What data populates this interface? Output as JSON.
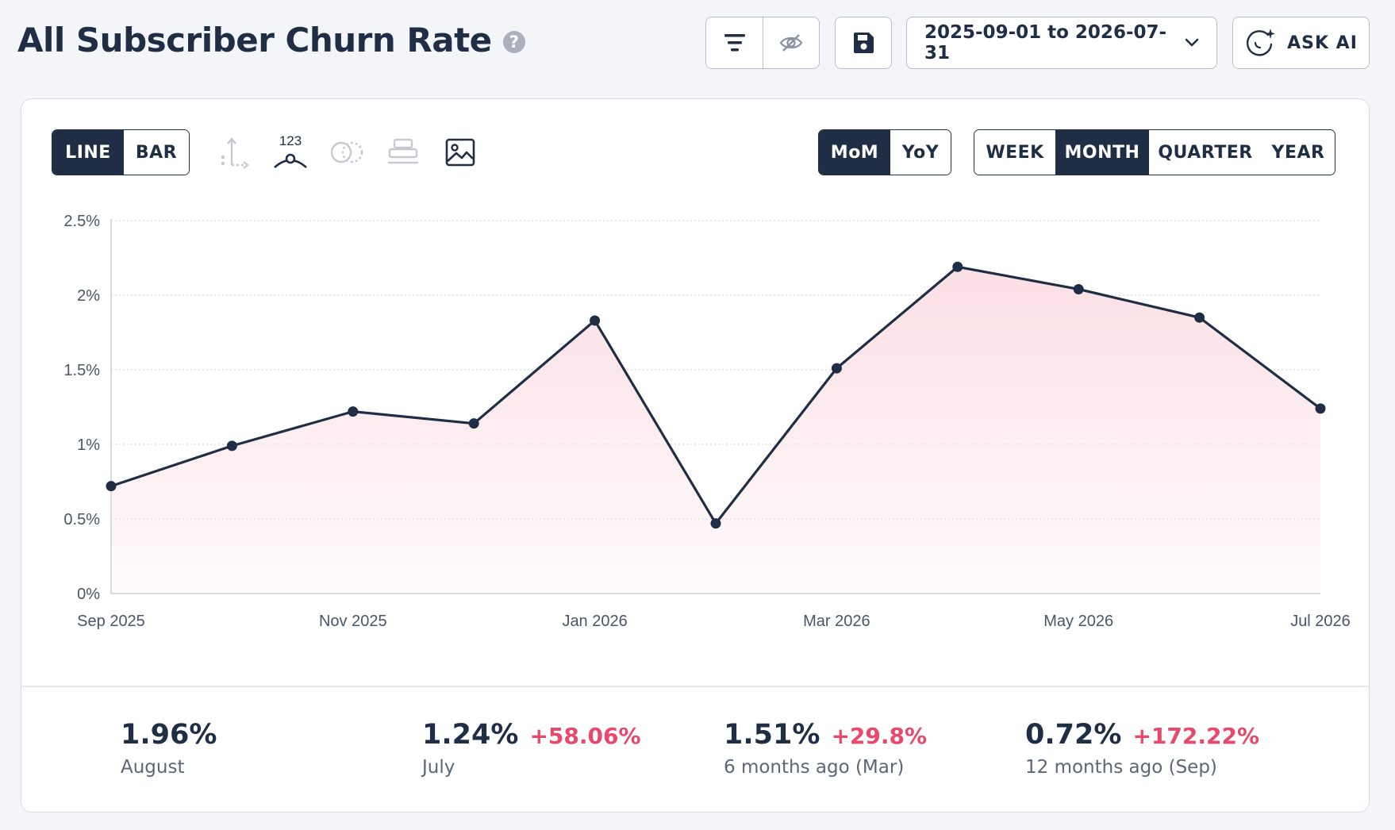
{
  "header": {
    "title": "All Subscriber Churn Rate",
    "help_glyph": "?",
    "date_range": "2025-09-01 to 2026-07-31",
    "ask_ai_label": "ASK AI"
  },
  "toolbar": {
    "chart_type_options": [
      "LINE",
      "BAR"
    ],
    "chart_type_selected": "LINE",
    "values_icon_label": "123",
    "compare_options": [
      "MoM",
      "YoY"
    ],
    "compare_selected": "MoM",
    "period_options": [
      "WEEK",
      "MONTH",
      "QUARTER",
      "YEAR"
    ],
    "period_selected": "MONTH"
  },
  "colors": {
    "line": "#1f2d45",
    "fill": "#fbdfe5",
    "positive_change": "#e8496b",
    "active_button": "#1f2d45"
  },
  "chart_data": {
    "type": "area",
    "x": [
      "Sep 2025",
      "Oct 2025",
      "Nov 2025",
      "Dec 2025",
      "Jan 2026",
      "Feb 2026",
      "Mar 2026",
      "Apr 2026",
      "May 2026",
      "Jun 2026",
      "Jul 2026"
    ],
    "x_tick_labels": [
      "Sep 2025",
      "Nov 2025",
      "Jan 2026",
      "Mar 2026",
      "May 2026",
      "Jul 2026"
    ],
    "series": [
      {
        "values": [
          0.72,
          0.99,
          1.22,
          1.14,
          1.83,
          0.47,
          1.51,
          2.19,
          2.04,
          1.85,
          1.24
        ]
      }
    ],
    "y_ticks": [
      "0%",
      "0.5%",
      "1%",
      "1.5%",
      "2%",
      "2.5%"
    ],
    "ylim": [
      0,
      2.5
    ],
    "y_unit": "%",
    "grid": true,
    "legend": "none"
  },
  "stats": [
    {
      "value": "1.96%",
      "change": "",
      "label": "August"
    },
    {
      "value": "1.24%",
      "change": "+58.06%",
      "label": "July"
    },
    {
      "value": "1.51%",
      "change": "+29.8%",
      "label": "6 months ago (Mar)"
    },
    {
      "value": "0.72%",
      "change": "+172.22%",
      "label": "12 months ago (Sep)"
    }
  ]
}
